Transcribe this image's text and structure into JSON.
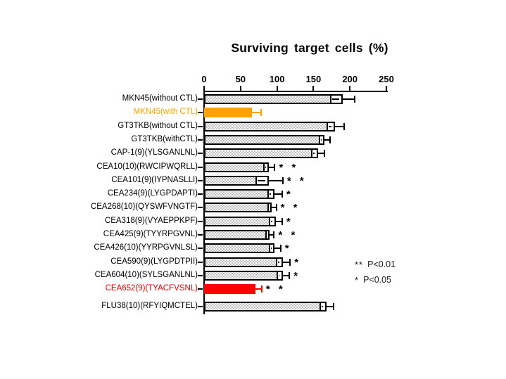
{
  "page": {
    "background": "#ffffff"
  },
  "chart_data": {
    "type": "bar",
    "orientation": "horizontal",
    "title": "Surviving target cells (%)",
    "xlabel": "Surviving target cells (%)",
    "xlim": [
      0,
      250
    ],
    "x_axis": {
      "position": "top",
      "ticks": [
        "0",
        "50",
        "100",
        "150",
        "200",
        "250"
      ]
    },
    "grid": false,
    "colors": {
      "bar_fill": "stippled-white",
      "bar_border": "#000000",
      "highlight_orange": "#FFA200",
      "highlight_red": "#FF0000",
      "orange_label": "#FFA200",
      "red_label": "#E00000",
      "axis": "#000000"
    },
    "legend": {
      "position": "right",
      "entries": [
        {
          "symbol": "**",
          "text": "P<0.01"
        },
        {
          "symbol": "*",
          "text": "P<0.05"
        }
      ]
    },
    "rows": [
      {
        "label": "MKN45(without CTL)",
        "value": 190,
        "err": 17,
        "style": "pattern",
        "sig": ""
      },
      {
        "label": "MKN45(with CTL)",
        "value": 66,
        "err": 12,
        "style": "orange",
        "sig": ""
      },
      {
        "label": "GT3TKB(without CTL)",
        "value": 180,
        "err": 12,
        "style": "pattern",
        "sig": ""
      },
      {
        "label": "GT3TKB(withCTL)",
        "value": 165,
        "err": 8,
        "style": "pattern",
        "sig": ""
      },
      {
        "label": "CAP-1(9)(YLSGANLNL)",
        "value": 156,
        "err": 9,
        "style": "pattern",
        "sig": ""
      },
      {
        "label": "CEA10(10)(RWCIPWQRLL)",
        "value": 89,
        "err": 8,
        "style": "pattern",
        "sig": "**"
      },
      {
        "label": "CEA101(9)(IYPNASLLI)",
        "value": 89,
        "err": 19,
        "style": "pattern",
        "sig": "**"
      },
      {
        "label": "CEA234(9)(LYGPDAPTI)",
        "value": 97,
        "err": 10,
        "style": "pattern",
        "sig": "*"
      },
      {
        "label": "CEA268(10)(QYSWFVNGTF)",
        "value": 93,
        "err": 6,
        "style": "pattern",
        "sig": "**"
      },
      {
        "label": "CEA318(9)(VYAEPPKPF)",
        "value": 98,
        "err": 9,
        "style": "pattern",
        "sig": "*"
      },
      {
        "label": "CEA425(9)(TYYRPGVNL)",
        "value": 90,
        "err": 6,
        "style": "pattern",
        "sig": "**"
      },
      {
        "label": "CEA426(10)(YYRPGVNLSL)",
        "value": 97,
        "err": 8,
        "style": "pattern",
        "sig": "*"
      },
      {
        "label": "CEA590(9)(LYGPDTPII)",
        "value": 108,
        "err": 10,
        "style": "pattern",
        "sig": "*"
      },
      {
        "label": "CEA604(10)(SYLSGANLNL)",
        "value": 108,
        "err": 9,
        "style": "pattern",
        "sig": "*"
      },
      {
        "label": "CEA652(9)(TYACFVSNL)",
        "value": 70,
        "err": 9,
        "style": "red",
        "sig": "**"
      },
      {
        "label": "FLU38(10)(RFYIQMCTEL)",
        "value": 168,
        "err": 10,
        "style": "pattern",
        "sig": ""
      }
    ]
  }
}
